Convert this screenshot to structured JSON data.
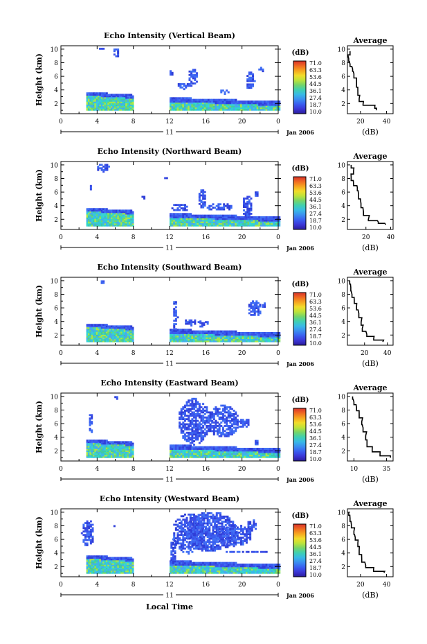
{
  "figure": {
    "xlabel": "Local Time",
    "date_label": "Jan 2006",
    "day_label": "11",
    "colorbar_unit": "(dB)",
    "colorbar_ticks": [
      "71.0",
      "63.3",
      "53.6",
      "44.5",
      "36.1",
      "27.4",
      "18.7",
      "10.0"
    ],
    "colorbar_colors": [
      "#d8322a",
      "#f06a22",
      "#f6a51f",
      "#f2dc2a",
      "#bde33a",
      "#74d56a",
      "#3fd0b0",
      "#38b9e6",
      "#3b8ef0",
      "#3a5ef0",
      "#3b36d6",
      "#2b1c9a"
    ],
    "average_title": "Average",
    "average_xlabel": "(dB)"
  },
  "chart_data": [
    {
      "type": "heatmap",
      "title": "Echo Intensity (Vertical Beam)",
      "ylabel": "Height (km)",
      "x_ticks": [
        "0",
        "4",
        "8",
        "12",
        "16",
        "20",
        "0"
      ],
      "y_ticks": [
        "2",
        "4",
        "6",
        "8",
        "10"
      ],
      "xlim": [
        0,
        24
      ],
      "ylim": [
        0.5,
        10.5
      ],
      "average": {
        "x_ticks": [
          "20",
          "40"
        ],
        "xlim": [
          10,
          45
        ],
        "y_ticks": [
          "2",
          "4",
          "6",
          "8",
          "10"
        ],
        "profile": [
          [
            32,
            1.0
          ],
          [
            31,
            1.6
          ],
          [
            22,
            1.9
          ],
          [
            19,
            2.7
          ],
          [
            18,
            3.7
          ],
          [
            17,
            5.1
          ],
          [
            15,
            6.4
          ],
          [
            14,
            7.1
          ],
          [
            12,
            7.8
          ],
          [
            11,
            8.6
          ],
          [
            12,
            9.7
          ]
        ]
      }
    },
    {
      "type": "heatmap",
      "title": "Echo Intensity (Northward Beam)",
      "ylabel": "Height (km)",
      "x_ticks": [
        "0",
        "4",
        "8",
        "12",
        "16",
        "20",
        "0"
      ],
      "y_ticks": [
        "2",
        "4",
        "6",
        "8",
        "10"
      ],
      "xlim": [
        0,
        24
      ],
      "ylim": [
        0.5,
        10.5
      ],
      "average": {
        "x_ticks": [
          "20",
          "40"
        ],
        "xlim": [
          5,
          42
        ],
        "y_ticks": [
          "2",
          "4",
          "6",
          "8",
          "10"
        ],
        "profile": [
          [
            36,
            1.2
          ],
          [
            30,
            1.6
          ],
          [
            22,
            2.0
          ],
          [
            18,
            3.1
          ],
          [
            16,
            4.3
          ],
          [
            14,
            5.7
          ],
          [
            13,
            6.7
          ],
          [
            10,
            7.2
          ],
          [
            8,
            8.2
          ],
          [
            10,
            9.1
          ],
          [
            8,
            10.0
          ]
        ]
      }
    },
    {
      "type": "heatmap",
      "title": "Echo Intensity (Southward Beam)",
      "ylabel": "Height (km)",
      "x_ticks": [
        "0",
        "4",
        "8",
        "12",
        "16",
        "20",
        "0"
      ],
      "y_ticks": [
        "2",
        "4",
        "6",
        "8",
        "10"
      ],
      "xlim": [
        0,
        24
      ],
      "ylim": [
        0.5,
        10.5
      ],
      "average": {
        "x_ticks": [
          "20",
          "40"
        ],
        "xlim": [
          5,
          45
        ],
        "y_ticks": [
          "2",
          "4",
          "6",
          "8",
          "10"
        ],
        "profile": [
          [
            36,
            1.0
          ],
          [
            28,
            1.5
          ],
          [
            22,
            2.1
          ],
          [
            18,
            3.0
          ],
          [
            17,
            3.9
          ],
          [
            15,
            5.2
          ],
          [
            13,
            6.2
          ],
          [
            11,
            7.1
          ],
          [
            9,
            8.0
          ],
          [
            8,
            9.0
          ],
          [
            7,
            10.0
          ]
        ]
      }
    },
    {
      "type": "heatmap",
      "title": "Echo Intensity (Eastward Beam)",
      "ylabel": "Height (km)",
      "x_ticks": [
        "0",
        "4",
        "8",
        "12",
        "16",
        "20",
        "0"
      ],
      "y_ticks": [
        "2",
        "4",
        "6",
        "8",
        "10"
      ],
      "xlim": [
        0,
        24
      ],
      "ylim": [
        0.5,
        10.5
      ],
      "average": {
        "x_ticks": [
          "10",
          "35"
        ],
        "xlim": [
          5,
          40
        ],
        "y_ticks": [
          "2",
          "4",
          "6",
          "8",
          "10"
        ],
        "profile": [
          [
            38,
            1.0
          ],
          [
            30,
            1.5
          ],
          [
            24,
            2.2
          ],
          [
            20,
            3.0
          ],
          [
            19,
            4.2
          ],
          [
            17,
            5.4
          ],
          [
            16,
            6.3
          ],
          [
            14,
            7.4
          ],
          [
            12,
            8.4
          ],
          [
            10,
            9.2
          ],
          [
            9,
            10.0
          ]
        ]
      }
    },
    {
      "type": "heatmap",
      "title": "Echo Intensity (Westward Beam)",
      "ylabel": "Height (km)",
      "x_ticks": [
        "0",
        "4",
        "8",
        "12",
        "16",
        "20",
        "0"
      ],
      "y_ticks": [
        "2",
        "4",
        "6",
        "8",
        "10"
      ],
      "xlim": [
        0,
        24
      ],
      "ylim": [
        0.5,
        10.5
      ],
      "average": {
        "x_ticks": [
          "20",
          "40"
        ],
        "xlim": [
          10,
          45
        ],
        "y_ticks": [
          "2",
          "4",
          "6",
          "8",
          "10"
        ],
        "profile": [
          [
            38,
            1.1
          ],
          [
            30,
            1.5
          ],
          [
            24,
            2.2
          ],
          [
            21,
            3.1
          ],
          [
            19,
            4.4
          ],
          [
            18,
            5.5
          ],
          [
            16,
            6.3
          ],
          [
            15,
            7.2
          ],
          [
            13,
            8.2
          ],
          [
            12,
            9.1
          ],
          [
            11,
            10.0
          ]
        ]
      }
    }
  ]
}
